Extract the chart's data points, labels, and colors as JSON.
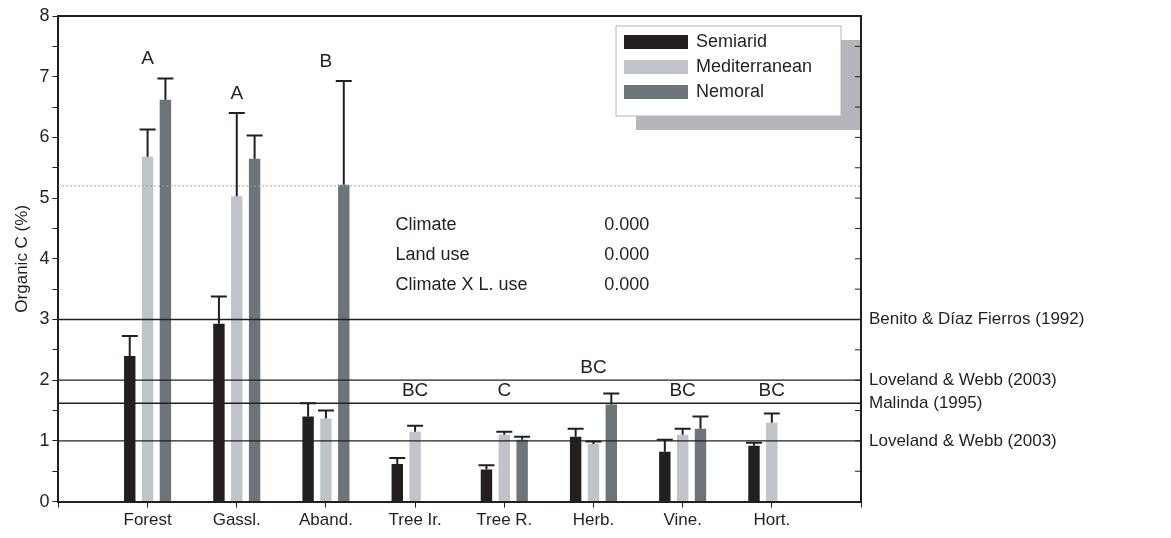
{
  "chart_data": {
    "type": "bar",
    "ylabel": "Organic C (%)",
    "categories": [
      "Forest",
      "Gassl.",
      "Aband.",
      "Tree Ir.",
      "Tree R.",
      "Herb.",
      "Vine.",
      "Hort."
    ],
    "series": [
      {
        "name": "Semiarid",
        "color": "#231f20",
        "values": [
          2.4,
          2.93,
          1.4,
          0.62,
          0.53,
          1.07,
          0.82,
          0.92
        ],
        "errors": [
          [
            2.4,
            2.73
          ],
          [
            2.93,
            3.38
          ],
          [
            1.4,
            1.62
          ],
          [
            0.62,
            0.72
          ],
          [
            0.53,
            0.6
          ],
          [
            1.07,
            1.2
          ],
          [
            0.82,
            1.02
          ],
          [
            0.92,
            0.97
          ]
        ]
      },
      {
        "name": "Mediterranean",
        "color": "#c0c3c8",
        "values": [
          5.68,
          5.03,
          1.37,
          1.15,
          1.1,
          0.95,
          1.1,
          1.3
        ],
        "errors": [
          [
            5.68,
            6.13
          ],
          [
            5.03,
            6.4
          ],
          [
            1.37,
            1.5
          ],
          [
            1.15,
            1.25
          ],
          [
            1.1,
            1.15
          ],
          [
            0.95,
            0.99
          ],
          [
            1.1,
            1.2
          ],
          [
            1.3,
            1.45
          ]
        ]
      },
      {
        "name": "Nemoral",
        "color": "#6d7578",
        "values": [
          6.62,
          5.65,
          5.22,
          null,
          1.02,
          1.6,
          1.2,
          null
        ],
        "errors": [
          [
            6.62,
            6.97
          ],
          [
            5.65,
            6.03
          ],
          [
            5.22,
            6.93
          ],
          null,
          [
            1.02,
            1.07
          ],
          [
            1.6,
            1.78
          ],
          [
            1.2,
            1.4
          ],
          null
        ]
      }
    ],
    "ylim": [
      0,
      8
    ],
    "yticks": [
      0,
      {
        "value": 0.5,
        "label": null
      },
      1,
      {
        "value": 1.5,
        "label": null
      },
      2,
      {
        "value": 2.5,
        "label": null
      },
      3,
      {
        "value": 3.5,
        "label": null
      },
      4,
      {
        "value": 4.5,
        "label": null
      },
      5,
      {
        "value": 5.5,
        "label": null
      },
      6,
      {
        "value": 6.5,
        "label": null
      },
      7,
      {
        "value": 7.5,
        "label": null
      },
      8
    ],
    "ref_lines": [
      {
        "axis": "y",
        "value": 5.2,
        "label": null,
        "color": "#a0a0a0",
        "line_style": "dotted"
      },
      {
        "axis": "y",
        "value": 3,
        "label": "Benito & Díaz Fierros (1992)",
        "color": "#231f20",
        "line_style": "solid"
      },
      {
        "axis": "y",
        "value": 2,
        "label": "Loveland & Webb (2003)",
        "color": "#231f20",
        "line_style": "solid"
      },
      {
        "axis": "y",
        "value": 1.62,
        "label": "Malinda (1995)",
        "color": "#231f20",
        "line_style": "solid"
      },
      {
        "axis": "y",
        "value": 1,
        "label": "Loveland & Webb (2003)",
        "color": "#231f20",
        "line_style": "solid"
      }
    ],
    "annotations": [
      "A",
      "A",
      "B",
      "BC",
      "C",
      "BC",
      "BC",
      "BC",
      "Climate",
      "0.000",
      "Land use",
      "0.000",
      "Climate X L. use",
      "0.000"
    ],
    "legend": "top right",
    "grid": false
  }
}
